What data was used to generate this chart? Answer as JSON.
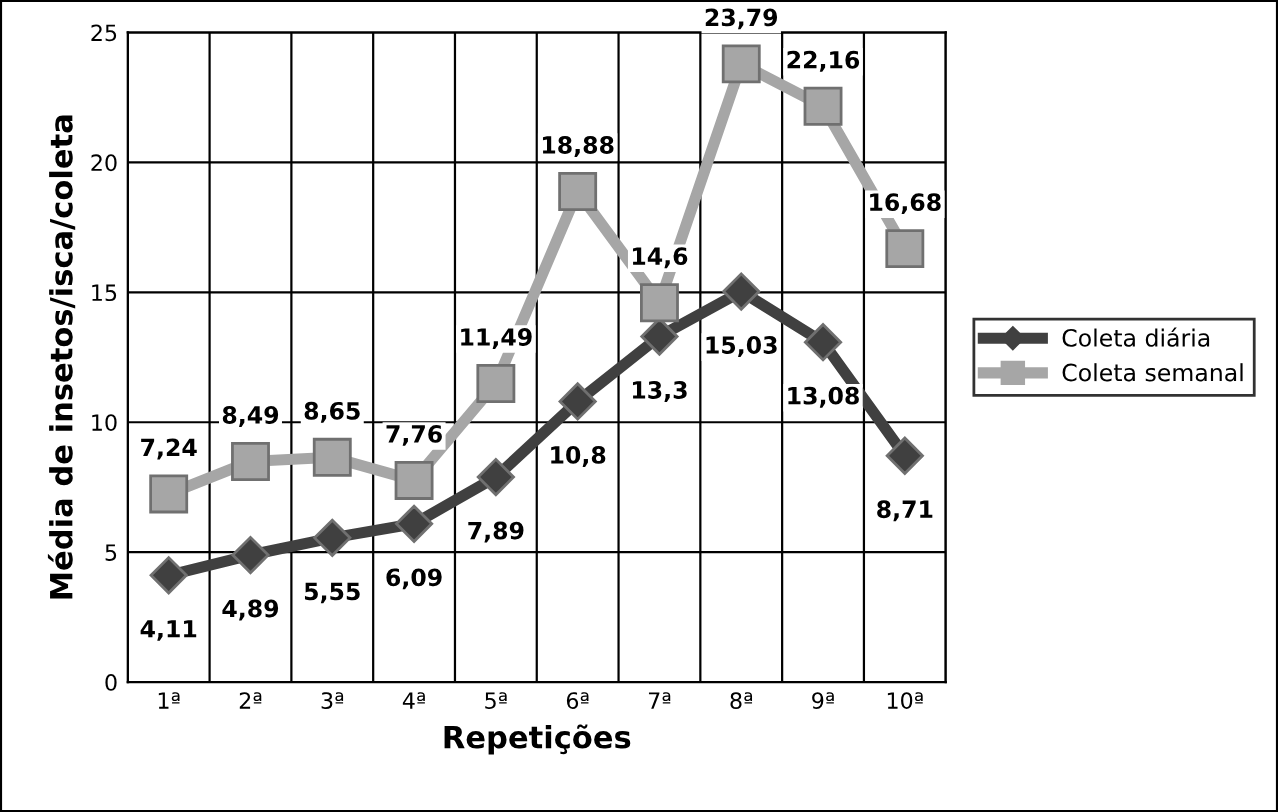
{
  "chart_data": {
    "type": "line",
    "xlabel": "Repetições",
    "ylabel": "Média de insetos/isca/coleta",
    "categories": [
      "1ª",
      "2ª",
      "3ª",
      "4ª",
      "5ª",
      "6ª",
      "7ª",
      "8ª",
      "9ª",
      "10ª"
    ],
    "series": [
      {
        "name": "Coleta diária",
        "color": "#404040",
        "marker": "diamond",
        "values": [
          4.11,
          4.89,
          5.55,
          6.09,
          7.89,
          10.8,
          13.3,
          15.03,
          13.08,
          8.71
        ],
        "value_labels": [
          "4,11",
          "4,89",
          "5,55",
          "6,09",
          "7,89",
          "10,8",
          "13,3",
          "15,03",
          "13,08",
          "8,71"
        ]
      },
      {
        "name": "Coleta semanal",
        "color": "#a6a6a6",
        "marker": "square",
        "values": [
          7.24,
          8.49,
          8.65,
          7.76,
          11.49,
          18.88,
          14.6,
          23.79,
          22.16,
          16.68
        ],
        "value_labels": [
          "7,24",
          "8,49",
          "8,65",
          "7,76",
          "11,49",
          "18,88",
          "14,6",
          "23,79",
          "22,16",
          "16,68"
        ]
      }
    ],
    "ylim": [
      0,
      25
    ],
    "yticks": [
      0,
      5,
      10,
      15,
      20,
      25
    ],
    "grid": true,
    "legend": "right"
  }
}
